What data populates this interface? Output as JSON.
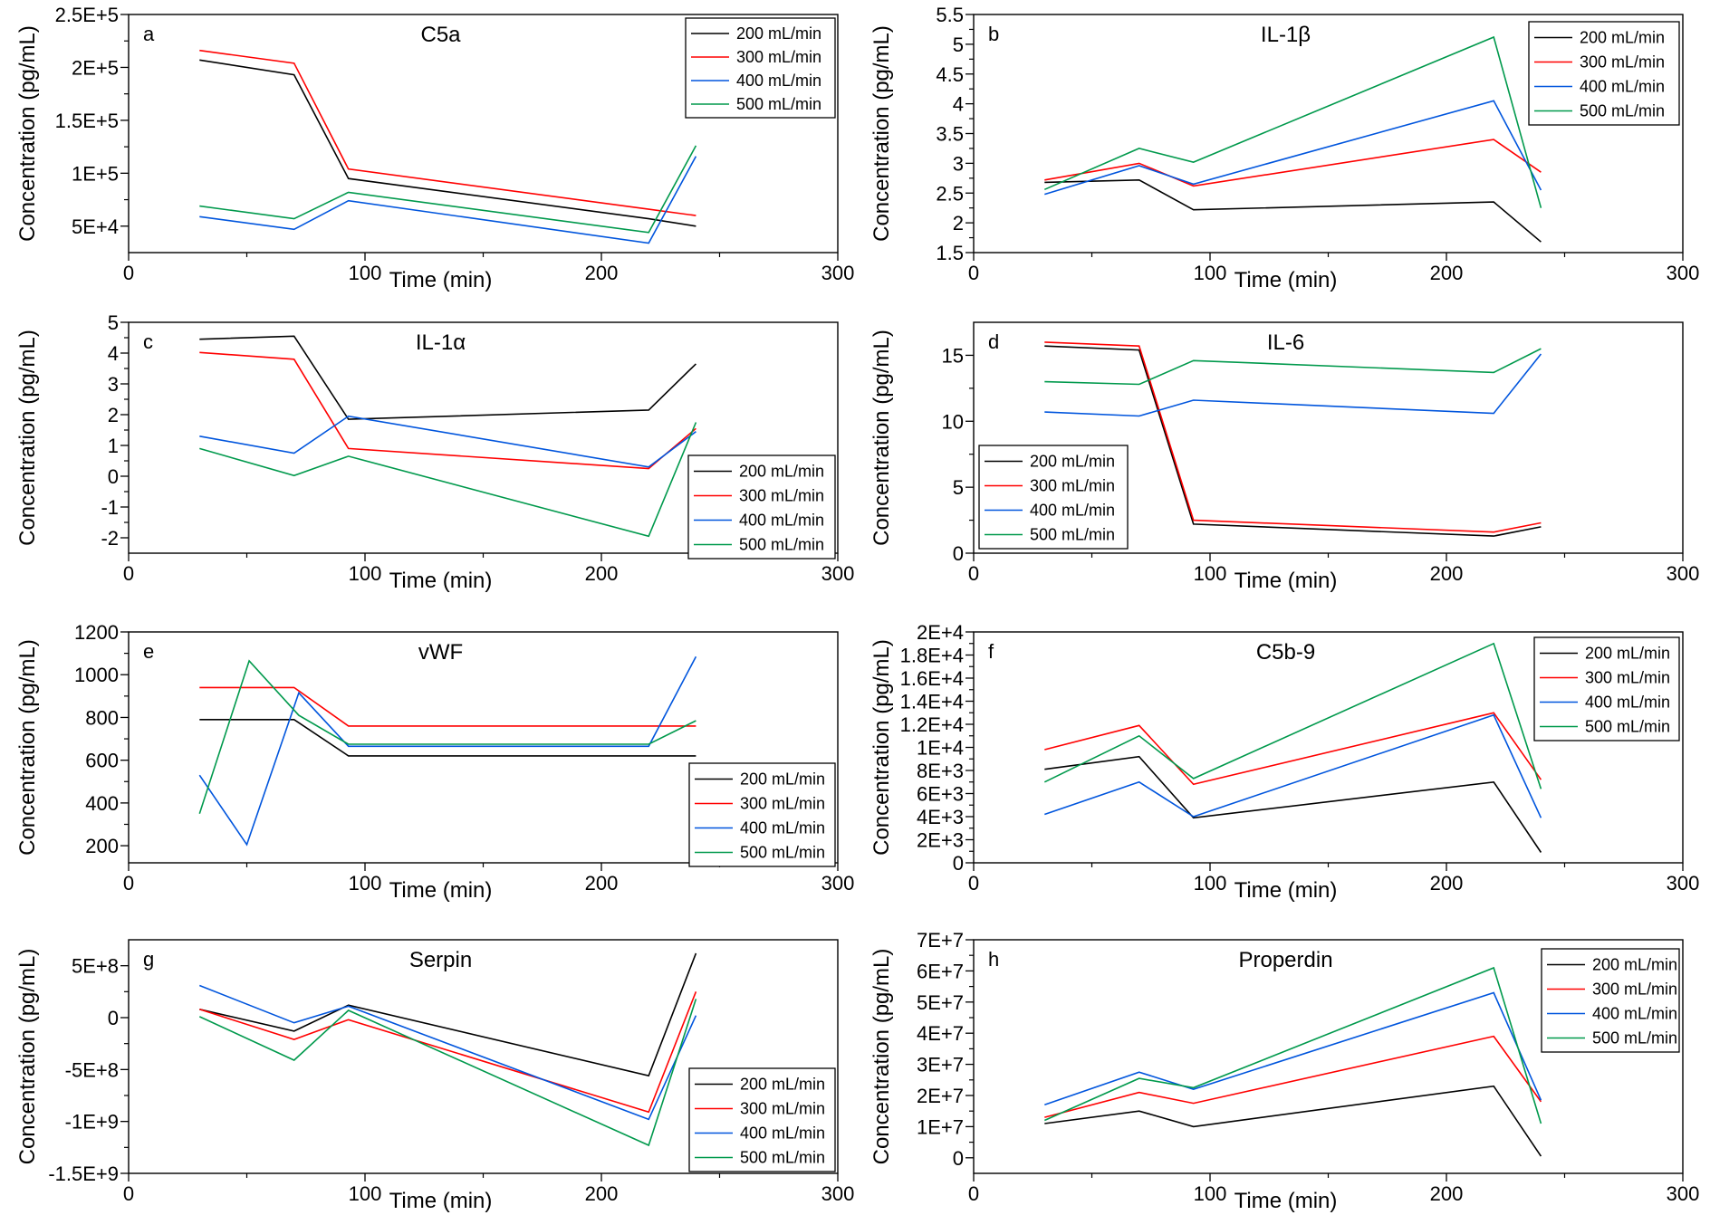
{
  "colors": {
    "200 mL/min": "#000000",
    "300 mL/min": "#ff0000",
    "400 mL/min": "#0055dd",
    "500 mL/min": "#00994c"
  },
  "chart_data": [
    {
      "type": "line",
      "letter": "a",
      "title": "C5a",
      "xlabel": "Time (min)",
      "ylabel": "Concentration (pg/mL)",
      "xlim": [
        0,
        300
      ],
      "ylim": [
        25000,
        250000
      ],
      "xticks": [
        0,
        100,
        200,
        300
      ],
      "xtick_labels": [
        "0",
        "100",
        "200",
        "300"
      ],
      "yticks": [
        50000,
        100000,
        150000,
        200000,
        250000
      ],
      "ytick_labels": [
        "5E+4",
        "1E+5",
        "1.5E+5",
        "2E+5",
        "2.5E+5"
      ],
      "legend_position": "top-right",
      "grid": false,
      "x": [
        30,
        70,
        93,
        220,
        240
      ],
      "series": [
        {
          "name": "200 mL/min",
          "values": [
            207000,
            193000,
            95000,
            57000,
            50000
          ]
        },
        {
          "name": "300 mL/min",
          "values": [
            216000,
            204000,
            104000,
            66000,
            60000
          ]
        },
        {
          "name": "400 mL/min",
          "values": [
            59000,
            47000,
            74000,
            34000,
            116000
          ]
        },
        {
          "name": "500 mL/min",
          "values": [
            69000,
            57000,
            82000,
            44000,
            126000
          ]
        }
      ]
    },
    {
      "type": "line",
      "letter": "b",
      "title": "IL-1β",
      "xlabel": "Time (min)",
      "ylabel": "Concentration (pg/mL)",
      "xlim": [
        0,
        300
      ],
      "ylim": [
        1.5,
        5.5
      ],
      "xticks": [
        0,
        100,
        200,
        300
      ],
      "xtick_labels": [
        "0",
        "100",
        "200",
        "300"
      ],
      "yticks": [
        1.5,
        2,
        2.5,
        3,
        3.5,
        4,
        4.5,
        5,
        5.5
      ],
      "ytick_labels": [
        "1.5",
        "2",
        "2.5",
        "3",
        "3.5",
        "4",
        "4.5",
        "5",
        "5.5"
      ],
      "legend_position": "top-right",
      "grid": false,
      "x": [
        30,
        70,
        93,
        220,
        240
      ],
      "series": [
        {
          "name": "200 mL/min",
          "values": [
            2.68,
            2.72,
            2.22,
            2.35,
            1.68
          ]
        },
        {
          "name": "300 mL/min",
          "values": [
            2.72,
            3.0,
            2.62,
            3.4,
            2.85
          ]
        },
        {
          "name": "400 mL/min",
          "values": [
            2.48,
            2.96,
            2.65,
            4.05,
            2.55
          ]
        },
        {
          "name": "500 mL/min",
          "values": [
            2.56,
            3.25,
            3.02,
            5.12,
            2.25
          ]
        }
      ]
    },
    {
      "type": "line",
      "letter": "c",
      "title": "IL-1α",
      "xlabel": "Time (min)",
      "ylabel": "Concentration (pg/mL)",
      "xlim": [
        0,
        300
      ],
      "ylim": [
        -2.5,
        5
      ],
      "xticks": [
        0,
        100,
        200,
        300
      ],
      "xtick_labels": [
        "0",
        "100",
        "200",
        "300"
      ],
      "yticks": [
        -2,
        -1,
        0,
        1,
        2,
        3,
        4,
        5
      ],
      "ytick_labels": [
        "-2",
        "-1",
        "0",
        "1",
        "2",
        "3",
        "4",
        "5"
      ],
      "legend_position": "bottom-right",
      "grid": false,
      "x": [
        30,
        70,
        93,
        220,
        240
      ],
      "series": [
        {
          "name": "200 mL/min",
          "values": [
            4.45,
            4.55,
            1.85,
            2.15,
            3.65
          ]
        },
        {
          "name": "300 mL/min",
          "values": [
            4.02,
            3.8,
            0.9,
            0.25,
            1.55
          ]
        },
        {
          "name": "400 mL/min",
          "values": [
            1.3,
            0.75,
            1.95,
            0.3,
            1.45
          ]
        },
        {
          "name": "500 mL/min",
          "values": [
            0.9,
            0.02,
            0.65,
            -1.95,
            1.75
          ]
        }
      ]
    },
    {
      "type": "line",
      "letter": "d",
      "title": "IL-6",
      "xlabel": "Time (min)",
      "ylabel": "Concentration (pg/mL)",
      "xlim": [
        0,
        300
      ],
      "ylim": [
        0,
        17.5
      ],
      "xticks": [
        0,
        100,
        200,
        300
      ],
      "xtick_labels": [
        "0",
        "100",
        "200",
        "300"
      ],
      "yticks": [
        0,
        5,
        10,
        15
      ],
      "ytick_labels": [
        "0",
        "5",
        "10",
        "15"
      ],
      "legend_position": "bottom-left",
      "grid": false,
      "x": [
        30,
        70,
        93,
        220,
        240
      ],
      "series": [
        {
          "name": "200 mL/min",
          "values": [
            15.7,
            15.4,
            2.2,
            1.3,
            2.0
          ]
        },
        {
          "name": "300 mL/min",
          "values": [
            16.0,
            15.7,
            2.5,
            1.6,
            2.3
          ]
        },
        {
          "name": "400 mL/min",
          "values": [
            10.7,
            10.4,
            11.6,
            10.6,
            15.1
          ]
        },
        {
          "name": "500 mL/min",
          "values": [
            13.0,
            12.8,
            14.6,
            13.7,
            15.5
          ]
        }
      ]
    },
    {
      "type": "line",
      "letter": "e",
      "title": "vWF",
      "xlabel": "Time (min)",
      "ylabel": "Concentration (pg/mL)",
      "xlim": [
        0,
        300
      ],
      "ylim": [
        120,
        1200
      ],
      "xticks": [
        0,
        100,
        200,
        300
      ],
      "xtick_labels": [
        "0",
        "100",
        "200",
        "300"
      ],
      "yticks": [
        200,
        400,
        600,
        800,
        1000,
        1200
      ],
      "ytick_labels": [
        "200",
        "400",
        "600",
        "800",
        "1000",
        "1200"
      ],
      "legend_position": "bottom-right",
      "grid": false,
      "series": [
        {
          "name": "200 mL/min",
          "x": [
            30,
            70,
            93,
            220,
            240
          ],
          "values": [
            790,
            790,
            620,
            620,
            620
          ]
        },
        {
          "name": "300 mL/min",
          "x": [
            30,
            70,
            93,
            220,
            240
          ],
          "values": [
            940,
            940,
            760,
            760,
            760
          ]
        },
        {
          "name": "400 mL/min",
          "x": [
            30,
            50,
            72,
            93,
            220,
            240
          ],
          "values": [
            530,
            205,
            915,
            665,
            665,
            1085
          ]
        },
        {
          "name": "500 mL/min",
          "x": [
            30,
            51,
            72,
            93,
            220,
            240
          ],
          "values": [
            350,
            1065,
            810,
            675,
            675,
            785
          ]
        }
      ]
    },
    {
      "type": "line",
      "letter": "f",
      "title": "C5b-9",
      "xlabel": "Time (min)",
      "ylabel": "Concentration (pg/mL)",
      "xlim": [
        0,
        300
      ],
      "ylim": [
        0,
        20000
      ],
      "xticks": [
        0,
        100,
        200,
        300
      ],
      "xtick_labels": [
        "0",
        "100",
        "200",
        "300"
      ],
      "yticks": [
        0,
        2000,
        4000,
        6000,
        8000,
        10000,
        12000,
        14000,
        16000,
        18000,
        20000
      ],
      "ytick_labels": [
        "0",
        "2E+3",
        "4E+3",
        "6E+3",
        "8E+3",
        "1E+4",
        "1.2E+4",
        "1.4E+4",
        "1.6E+4",
        "1.8E+4",
        "2E+4"
      ],
      "legend_position": "top-right",
      "grid": false,
      "x": [
        30,
        70,
        93,
        220,
        240
      ],
      "series": [
        {
          "name": "200 mL/min",
          "values": [
            8100,
            9200,
            3900,
            7000,
            900
          ]
        },
        {
          "name": "300 mL/min",
          "values": [
            9800,
            11900,
            6800,
            13000,
            7200
          ]
        },
        {
          "name": "400 mL/min",
          "values": [
            4200,
            7000,
            4000,
            12800,
            3900
          ]
        },
        {
          "name": "500 mL/min",
          "values": [
            7000,
            11000,
            7300,
            19000,
            6400
          ]
        }
      ]
    },
    {
      "type": "line",
      "letter": "g",
      "title": "Serpin",
      "xlabel": "Time (min)",
      "ylabel": "Concentration (pg/mL)",
      "xlim": [
        0,
        300
      ],
      "ylim": [
        -1500000000,
        750000000
      ],
      "xticks": [
        0,
        100,
        200,
        300
      ],
      "xtick_labels": [
        "0",
        "100",
        "200",
        "300"
      ],
      "yticks": [
        -1500000000,
        -1000000000,
        -500000000,
        0,
        500000000
      ],
      "ytick_labels": [
        "-1.5E+9",
        "-1E+9",
        "-5E+8",
        "0",
        "5E+8"
      ],
      "legend_position": "bottom-right",
      "grid": false,
      "x": [
        30,
        70,
        93,
        220,
        240
      ],
      "series": [
        {
          "name": "200 mL/min",
          "values": [
            80000000,
            -130000000,
            120000000,
            -560000000,
            620000000
          ]
        },
        {
          "name": "300 mL/min",
          "values": [
            80000000,
            -210000000,
            -20000000,
            -910000000,
            250000000
          ]
        },
        {
          "name": "400 mL/min",
          "values": [
            310000000,
            -50000000,
            110000000,
            -980000000,
            20000000
          ]
        },
        {
          "name": "500 mL/min",
          "values": [
            10000000,
            -410000000,
            70000000,
            -1230000000,
            180000000
          ]
        }
      ]
    },
    {
      "type": "line",
      "letter": "h",
      "title": "Properdin",
      "xlabel": "Time (min)",
      "ylabel": "Concentration (pg/mL)",
      "xlim": [
        0,
        300
      ],
      "ylim": [
        -5000000,
        70000000
      ],
      "xticks": [
        0,
        100,
        200,
        300
      ],
      "xtick_labels": [
        "0",
        "100",
        "200",
        "300"
      ],
      "yticks": [
        0,
        10000000,
        20000000,
        30000000,
        40000000,
        50000000,
        60000000,
        70000000
      ],
      "ytick_labels": [
        "0",
        "1E+7",
        "2E+7",
        "3E+7",
        "4E+7",
        "5E+7",
        "6E+7",
        "7E+7"
      ],
      "legend_position": "top-right",
      "grid": false,
      "x": [
        30,
        70,
        93,
        220,
        240
      ],
      "series": [
        {
          "name": "200 mL/min",
          "values": [
            11000000,
            15000000,
            10000000,
            23000000,
            500000
          ]
        },
        {
          "name": "300 mL/min",
          "values": [
            13000000,
            21000000,
            17500000,
            39000000,
            18000000
          ]
        },
        {
          "name": "400 mL/min",
          "values": [
            17000000,
            27500000,
            22000000,
            53000000,
            18500000
          ]
        },
        {
          "name": "500 mL/min",
          "values": [
            12000000,
            25500000,
            22500000,
            61000000,
            11000000
          ]
        }
      ]
    }
  ]
}
